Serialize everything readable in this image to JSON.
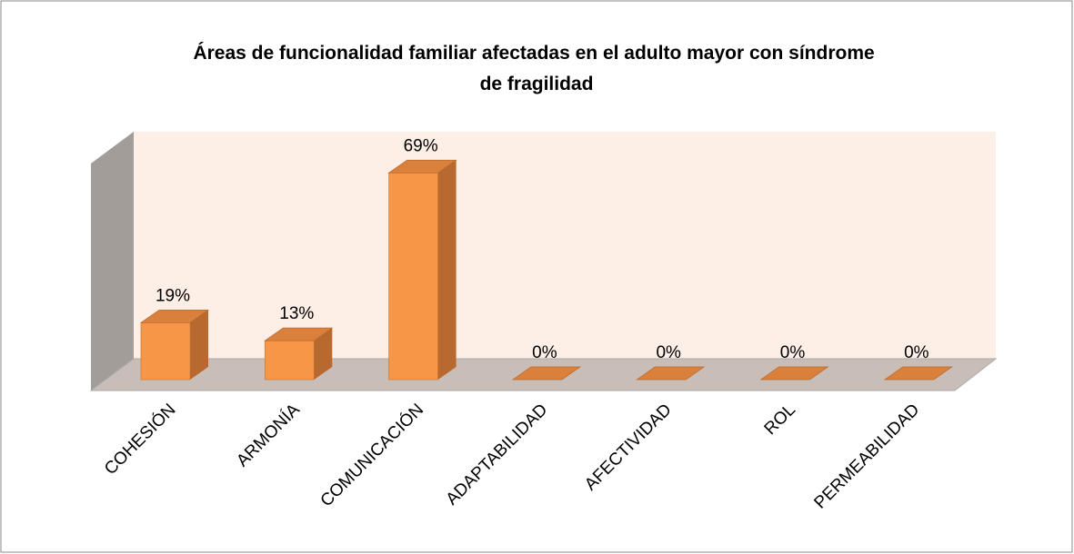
{
  "chart_data": {
    "type": "bar3d",
    "title": "Áreas de funcionalidad familiar afectadas en el adulto mayor con síndrome de fragilidad",
    "categories": [
      "COHESIÓN",
      "ARMONÍA",
      "COMUNICACIÓN",
      "ADAPTABILIDAD",
      "AFECTIVIDAD",
      "ROL",
      "PERMEABILIDAD"
    ],
    "values": [
      19,
      13,
      69,
      0,
      0,
      0,
      0
    ],
    "value_labels": [
      "19%",
      "13%",
      "69%",
      "0%",
      "0%",
      "0%",
      "0%"
    ],
    "color": "#f79646"
  }
}
